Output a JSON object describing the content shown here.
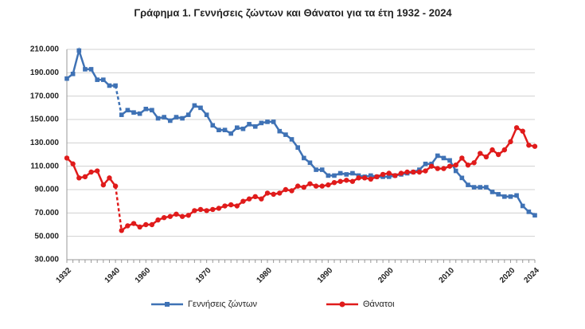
{
  "chart_data": {
    "type": "line",
    "title": "Γράφημα 1.  Γεννήσεις ζώντων και Θάνατοι για τα έτη 1932 - 2024",
    "categories": [
      "1932",
      null,
      null,
      null,
      null,
      null,
      null,
      null,
      "1940",
      null,
      null,
      null,
      null,
      "1960",
      null,
      null,
      null,
      null,
      null,
      null,
      null,
      null,
      null,
      "1970",
      null,
      null,
      null,
      null,
      null,
      null,
      null,
      null,
      null,
      "1980",
      null,
      null,
      null,
      null,
      null,
      null,
      null,
      null,
      null,
      "1990",
      null,
      null,
      null,
      null,
      null,
      null,
      null,
      null,
      null,
      "2000",
      null,
      null,
      null,
      null,
      null,
      null,
      null,
      null,
      null,
      "2010",
      null,
      null,
      null,
      null,
      null,
      null,
      null,
      null,
      null,
      "2020",
      null,
      null,
      null,
      "2024"
    ],
    "dashed_gap": [
      8,
      9
    ],
    "series": [
      {
        "name": "Γεννήσεις ζώντων",
        "color": "#3f72b5",
        "marker": "square",
        "values": [
          185000,
          189000,
          209000,
          193000,
          193000,
          184000,
          184000,
          179000,
          179000,
          154000,
          158000,
          156000,
          155000,
          159000,
          158000,
          151000,
          152000,
          149000,
          152000,
          151000,
          154000,
          162000,
          160000,
          154000,
          145000,
          141000,
          141000,
          138000,
          143000,
          142000,
          146000,
          144000,
          147000,
          148000,
          148000,
          140000,
          137000,
          133000,
          126000,
          117000,
          113000,
          107000,
          107000,
          102000,
          102000,
          104000,
          103000,
          104000,
          102000,
          101000,
          102000,
          101000,
          101000,
          101000,
          102000,
          103000,
          104000,
          105000,
          107000,
          112000,
          112000,
          119000,
          117000,
          115000,
          106000,
          100000,
          94000,
          92000,
          92000,
          92000,
          88000,
          86000,
          84000,
          84000,
          85000,
          76000,
          71000,
          68000
        ]
      },
      {
        "name": "Θάνατοι",
        "color": "#e01b1b",
        "marker": "circle",
        "values": [
          117000,
          112000,
          100000,
          101000,
          105000,
          106000,
          94000,
          100000,
          93000,
          55000,
          59000,
          61000,
          58000,
          60000,
          60000,
          64000,
          66000,
          67000,
          69000,
          67000,
          68000,
          72000,
          73000,
          72000,
          73000,
          74000,
          76000,
          77000,
          76000,
          80000,
          82000,
          84000,
          82000,
          87000,
          86000,
          87000,
          90000,
          89000,
          93000,
          92000,
          95000,
          93000,
          93000,
          94000,
          96000,
          97000,
          98000,
          97000,
          100000,
          100000,
          99000,
          101000,
          103000,
          104000,
          102000,
          104000,
          105000,
          105000,
          105000,
          106000,
          110000,
          108000,
          108000,
          110000,
          111000,
          117000,
          111000,
          113000,
          121000,
          118000,
          124000,
          120000,
          124000,
          131000,
          143000,
          140000,
          128000,
          127000
        ]
      }
    ],
    "ylim": [
      30000,
      210000
    ],
    "yticks": [
      {
        "value": 30000,
        "label": "30.000"
      },
      {
        "value": 50000,
        "label": "50.000"
      },
      {
        "value": 70000,
        "label": "70.000"
      },
      {
        "value": 90000,
        "label": "90.000"
      },
      {
        "value": 110000,
        "label": "110.000"
      },
      {
        "value": 130000,
        "label": "130.000"
      },
      {
        "value": 150000,
        "label": "150.000"
      },
      {
        "value": 170000,
        "label": "170.000"
      },
      {
        "value": 190000,
        "label": "190.000"
      },
      {
        "value": 210000,
        "label": "210.000"
      }
    ],
    "grid": true
  }
}
